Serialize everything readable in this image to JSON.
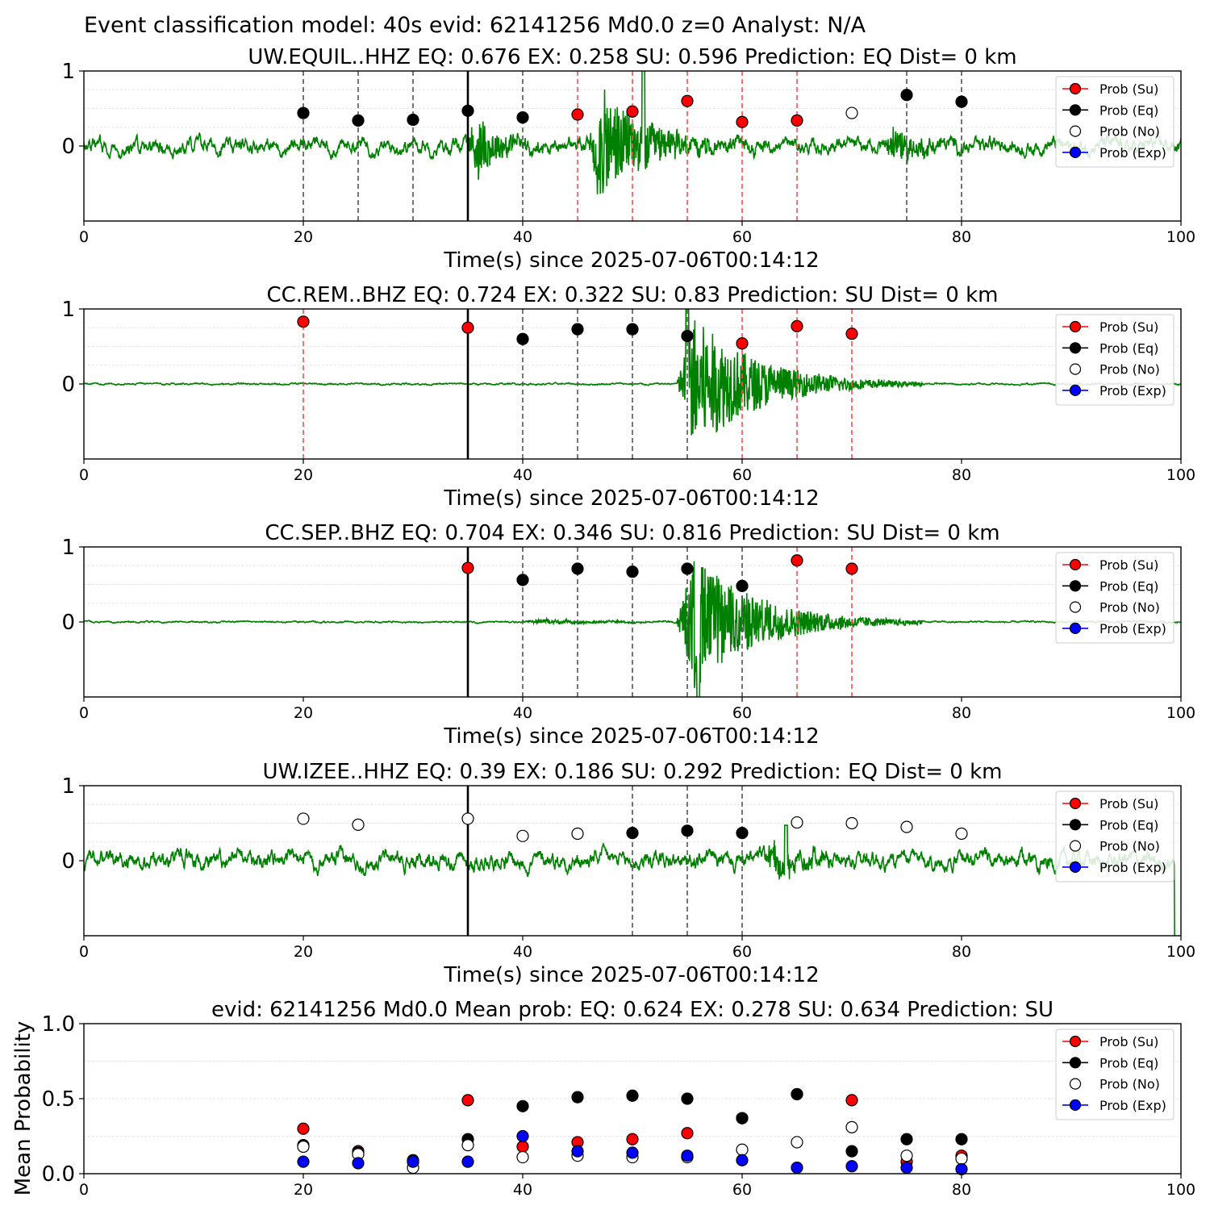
{
  "suptitle": "Event classification model: 40s evid: 62141256 Md0.0 z=0 Analyst: N/A",
  "xlabel": "Time(s) since 2025-07-06T00:14:12",
  "legend": [
    "Prob (Su)",
    "Prob (Eq)",
    "Prob (No)",
    "Prob (Exp)"
  ],
  "colors": {
    "su": "#ff0000",
    "eq": "#000000",
    "no": "#ffffff",
    "exp": "#0000ff",
    "trace": "#008000",
    "vline_eq": "#555555",
    "vline_su": "#ff4d4d",
    "pick": "#000000"
  },
  "chart_data": [
    {
      "type": "scatter",
      "title": "UW.EQUIL..HHZ   EQ: 0.676  EX: 0.258  SU: 0.596   Prediction: EQ    Dist= 0 km",
      "xlim": [
        0,
        100
      ],
      "ylim": [
        -1,
        1
      ],
      "xticks": [
        "0",
        "20",
        "40",
        "60",
        "80",
        "100"
      ],
      "yticks": [
        "0",
        "1"
      ],
      "pick_time": 35,
      "waveform": {
        "noise": 0.07,
        "bursts": [
          [
            35,
            5,
            0.45
          ],
          [
            46,
            10,
            0.75
          ],
          [
            73,
            6,
            0.25
          ]
        ],
        "spike": [
          51,
          1.0
        ],
        "fade_end": true,
        "step_end": false
      },
      "points": [
        {
          "x": 20,
          "y": 0.44,
          "class": "eq"
        },
        {
          "x": 25,
          "y": 0.34,
          "class": "eq"
        },
        {
          "x": 30,
          "y": 0.35,
          "class": "eq"
        },
        {
          "x": 35,
          "y": 0.47,
          "class": "eq"
        },
        {
          "x": 40,
          "y": 0.38,
          "class": "eq"
        },
        {
          "x": 45,
          "y": 0.42,
          "class": "su"
        },
        {
          "x": 50,
          "y": 0.46,
          "class": "su"
        },
        {
          "x": 55,
          "y": 0.6,
          "class": "su"
        },
        {
          "x": 60,
          "y": 0.32,
          "class": "su"
        },
        {
          "x": 65,
          "y": 0.34,
          "class": "su"
        },
        {
          "x": 70,
          "y": 0.44,
          "class": "no"
        },
        {
          "x": 75,
          "y": 0.68,
          "class": "eq"
        },
        {
          "x": 80,
          "y": 0.59,
          "class": "eq"
        }
      ]
    },
    {
      "type": "scatter",
      "title": "CC.REM..BHZ   EQ: 0.724  EX: 0.322  SU: 0.83   Prediction: SU    Dist= 0 km",
      "xlim": [
        0,
        100
      ],
      "ylim": [
        -1,
        1
      ],
      "xticks": [
        "0",
        "20",
        "40",
        "60",
        "80",
        "100"
      ],
      "yticks": [
        "0",
        "1"
      ],
      "pick_time": 35,
      "waveform": {
        "noise": 0.008,
        "bursts": [
          [
            54,
            14,
            0.9
          ]
        ],
        "spike": [
          55,
          1.0
        ],
        "fade_end": false,
        "step_end": false
      },
      "points": [
        {
          "x": 20,
          "y": 0.83,
          "class": "su"
        },
        {
          "x": 35,
          "y": 0.75,
          "class": "su"
        },
        {
          "x": 40,
          "y": 0.6,
          "class": "eq"
        },
        {
          "x": 45,
          "y": 0.73,
          "class": "eq"
        },
        {
          "x": 50,
          "y": 0.73,
          "class": "eq"
        },
        {
          "x": 55,
          "y": 0.64,
          "class": "eq"
        },
        {
          "x": 60,
          "y": 0.54,
          "class": "su"
        },
        {
          "x": 65,
          "y": 0.77,
          "class": "su"
        },
        {
          "x": 70,
          "y": 0.67,
          "class": "su"
        }
      ]
    },
    {
      "type": "scatter",
      "title": "CC.SEP..BHZ   EQ: 0.704  EX: 0.346  SU: 0.816   Prediction: SU    Dist= 0 km",
      "xlim": [
        0,
        100
      ],
      "ylim": [
        -1,
        1
      ],
      "xticks": [
        "0",
        "20",
        "40",
        "60",
        "80",
        "100"
      ],
      "yticks": [
        "0",
        "1"
      ],
      "pick_time": 35,
      "waveform": {
        "noise": 0.008,
        "bursts": [
          [
            54,
            14,
            0.9
          ],
          [
            40,
            14,
            0.03
          ]
        ],
        "spike": [
          56,
          -1.0
        ],
        "fade_end": false,
        "step_end": false
      },
      "points": [
        {
          "x": 35,
          "y": 0.72,
          "class": "su"
        },
        {
          "x": 40,
          "y": 0.56,
          "class": "eq"
        },
        {
          "x": 45,
          "y": 0.71,
          "class": "eq"
        },
        {
          "x": 50,
          "y": 0.67,
          "class": "eq"
        },
        {
          "x": 55,
          "y": 0.71,
          "class": "eq"
        },
        {
          "x": 60,
          "y": 0.48,
          "class": "eq"
        },
        {
          "x": 65,
          "y": 0.82,
          "class": "su"
        },
        {
          "x": 70,
          "y": 0.71,
          "class": "su"
        }
      ]
    },
    {
      "type": "scatter",
      "title": "UW.IZEE..HHZ   EQ: 0.39  EX: 0.186  SU: 0.292   Prediction: EQ    Dist= 0 km",
      "xlim": [
        0,
        100
      ],
      "ylim": [
        -1,
        1
      ],
      "xticks": [
        "0",
        "20",
        "40",
        "60",
        "80",
        "100"
      ],
      "yticks": [
        "0",
        "1"
      ],
      "pick_time": 35,
      "waveform": {
        "noise": 0.08,
        "bursts": [
          [
            62,
            8,
            0.2
          ]
        ],
        "spike": [
          64,
          0.45
        ],
        "fade_end": true,
        "step_end": true
      },
      "points": [
        {
          "x": 20,
          "y": 0.56,
          "class": "no"
        },
        {
          "x": 25,
          "y": 0.48,
          "class": "no"
        },
        {
          "x": 35,
          "y": 0.56,
          "class": "no"
        },
        {
          "x": 40,
          "y": 0.33,
          "class": "no"
        },
        {
          "x": 45,
          "y": 0.36,
          "class": "no"
        },
        {
          "x": 50,
          "y": 0.37,
          "class": "eq"
        },
        {
          "x": 55,
          "y": 0.4,
          "class": "eq"
        },
        {
          "x": 60,
          "y": 0.37,
          "class": "eq"
        },
        {
          "x": 65,
          "y": 0.51,
          "class": "no"
        },
        {
          "x": 70,
          "y": 0.5,
          "class": "no"
        },
        {
          "x": 75,
          "y": 0.45,
          "class": "no"
        },
        {
          "x": 80,
          "y": 0.36,
          "class": "no"
        }
      ]
    },
    {
      "type": "scatter",
      "title": "evid: 62141256  Md0.0   Mean prob:   EQ: 0.624  EX: 0.278  SU: 0.634   Prediction: SU",
      "ylabel": "Mean Probability",
      "xlim": [
        0,
        100
      ],
      "ylim": [
        0,
        1
      ],
      "xticks": [
        "0",
        "20",
        "40",
        "60",
        "80",
        "100"
      ],
      "yticks": [
        "0.0",
        "0.5",
        "1.0"
      ],
      "x": [
        20,
        25,
        30,
        35,
        40,
        45,
        50,
        55,
        60,
        65,
        70,
        75,
        80
      ],
      "series": [
        {
          "name": "Prob (Su)",
          "class": "su",
          "values": [
            0.3,
            0.15,
            0.08,
            0.49,
            0.18,
            0.21,
            0.23,
            0.27,
            0.37,
            0.53,
            0.49,
            0.08,
            0.12
          ]
        },
        {
          "name": "Prob (Eq)",
          "class": "eq",
          "values": [
            0.19,
            0.14,
            0.09,
            0.23,
            0.45,
            0.51,
            0.52,
            0.5,
            0.37,
            0.53,
            0.15,
            0.23,
            0.23
          ]
        },
        {
          "name": "Prob (No)",
          "class": "no",
          "values": [
            0.18,
            0.13,
            0.04,
            0.19,
            0.11,
            0.12,
            0.11,
            0.11,
            0.16,
            0.21,
            0.31,
            0.12,
            0.1
          ]
        },
        {
          "name": "Prob (Exp)",
          "class": "exp",
          "values": [
            0.08,
            0.07,
            0.08,
            0.08,
            0.25,
            0.15,
            0.14,
            0.12,
            0.09,
            0.04,
            0.05,
            0.04,
            0.03
          ]
        }
      ]
    }
  ]
}
